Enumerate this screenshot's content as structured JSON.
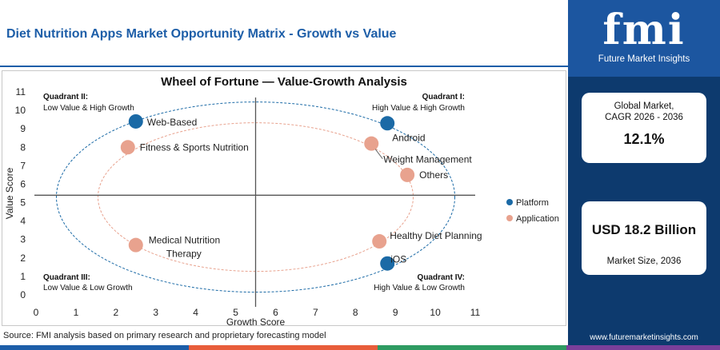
{
  "header": {
    "title": "Diet Nutrition Apps Market Opportunity Matrix - Growth vs Value"
  },
  "source": "Source: FMI analysis based on primary research and proprietary forecasting model",
  "sidebar": {
    "logo_text": "fmi",
    "logo_subtitle": "Future Market Insights",
    "card1_label_line1": "Global Market,",
    "card1_label_line2": "CAGR 2026 - 2036",
    "card1_value": "12.1%",
    "card2_value": "USD 18.2 Billion",
    "card2_label": "Market Size, 2036",
    "website": "www.futuremarketinsights.com"
  },
  "colors": {
    "title_blue": "#1d5ea8",
    "platform": "#1b6aa6",
    "application": "#e8a28e",
    "sidebar_dark": "#0d3a6e",
    "sidebar_logo": "#1c56a0",
    "bar_segments": [
      "#1d5ea8",
      "#e85d3a",
      "#2e9b62",
      "#7a3f9a"
    ]
  },
  "chart_data": {
    "type": "scatter",
    "title": "Wheel of Fortune — Value-Growth Analysis",
    "xlabel": "Growth Score",
    "ylabel": "Value Score",
    "xlim": [
      0,
      11
    ],
    "ylim": [
      0,
      11
    ],
    "xticks": [
      "0",
      "1",
      "2",
      "3",
      "4",
      "5",
      "6",
      "7",
      "8",
      "9",
      "10",
      "11"
    ],
    "yticks": [
      "0",
      "1",
      "2",
      "3",
      "4",
      "5",
      "6",
      "7",
      "8",
      "9",
      "10",
      "11"
    ],
    "divider_x": 5.5,
    "divider_y": 5.4,
    "legend_position": "right",
    "series": [
      {
        "name": "Platform",
        "color": "#1b6aa6",
        "points": [
          {
            "label": "Web-Based",
            "x": 2.5,
            "y": 9.4
          },
          {
            "label": "Android",
            "x": 8.8,
            "y": 9.3
          },
          {
            "label": "iOS",
            "x": 8.8,
            "y": 1.7
          }
        ]
      },
      {
        "name": "Application",
        "color": "#e8a28e",
        "points": [
          {
            "label": "Fitness & Sports Nutrition",
            "x": 2.3,
            "y": 8.0
          },
          {
            "label": "Weight Management",
            "x": 8.4,
            "y": 8.2
          },
          {
            "label": "Others",
            "x": 9.3,
            "y": 6.5
          },
          {
            "label": "Medical Nutrition Therapy",
            "x": 2.5,
            "y": 2.7
          },
          {
            "label": "Healthy Diet Planning",
            "x": 8.6,
            "y": 2.9
          }
        ]
      }
    ],
    "quadrants": [
      {
        "title": "Quadrant II:",
        "subtitle": "Low Value & High Growth"
      },
      {
        "title": "Quadrant I:",
        "subtitle": "High Value & High Growth"
      },
      {
        "title": "Quadrant III:",
        "subtitle": "Low Value & Low Growth"
      },
      {
        "title": "Quadrant IV:",
        "subtitle": "High Value & Low Growth"
      }
    ]
  }
}
